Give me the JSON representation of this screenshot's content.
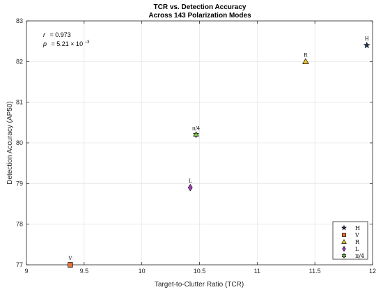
{
  "chart_data": {
    "type": "scatter",
    "title": "TCR vs. Detection Accuracy",
    "subtitle": "Across 143 Polarization Modes",
    "xlabel": "Target-to-Clutter Ratio (TCR)",
    "ylabel": "Detection Accuracy (AP50)",
    "xlim": [
      9,
      12
    ],
    "ylim": [
      77,
      83
    ],
    "xticks": [
      "9",
      "9.5",
      "10",
      "10.5",
      "11",
      "11.5",
      "12"
    ],
    "yticks": [
      "77",
      "78",
      "79",
      "80",
      "81",
      "82",
      "83"
    ],
    "grid": true,
    "legend_position": "bottom-right",
    "annotation": {
      "r_label": "r",
      "r_value": "= 0.973",
      "p_label": "p",
      "p_value": "= 5.21 × 10",
      "p_exponent": "−3"
    },
    "points": [
      {
        "label": "H",
        "x": 11.95,
        "y": 82.4,
        "marker": "star",
        "color": "#1f3a5f"
      },
      {
        "label": "V",
        "x": 9.38,
        "y": 77.0,
        "marker": "square",
        "color": "#e8703a"
      },
      {
        "label": "R",
        "x": 11.42,
        "y": 82.0,
        "marker": "triangle",
        "color": "#f2c029"
      },
      {
        "label": "L",
        "x": 10.42,
        "y": 78.9,
        "marker": "diamond",
        "color": "#b03cc8"
      },
      {
        "label": "π/4",
        "x": 10.47,
        "y": 80.2,
        "marker": "hexagram",
        "color": "#7cc24a"
      }
    ]
  }
}
